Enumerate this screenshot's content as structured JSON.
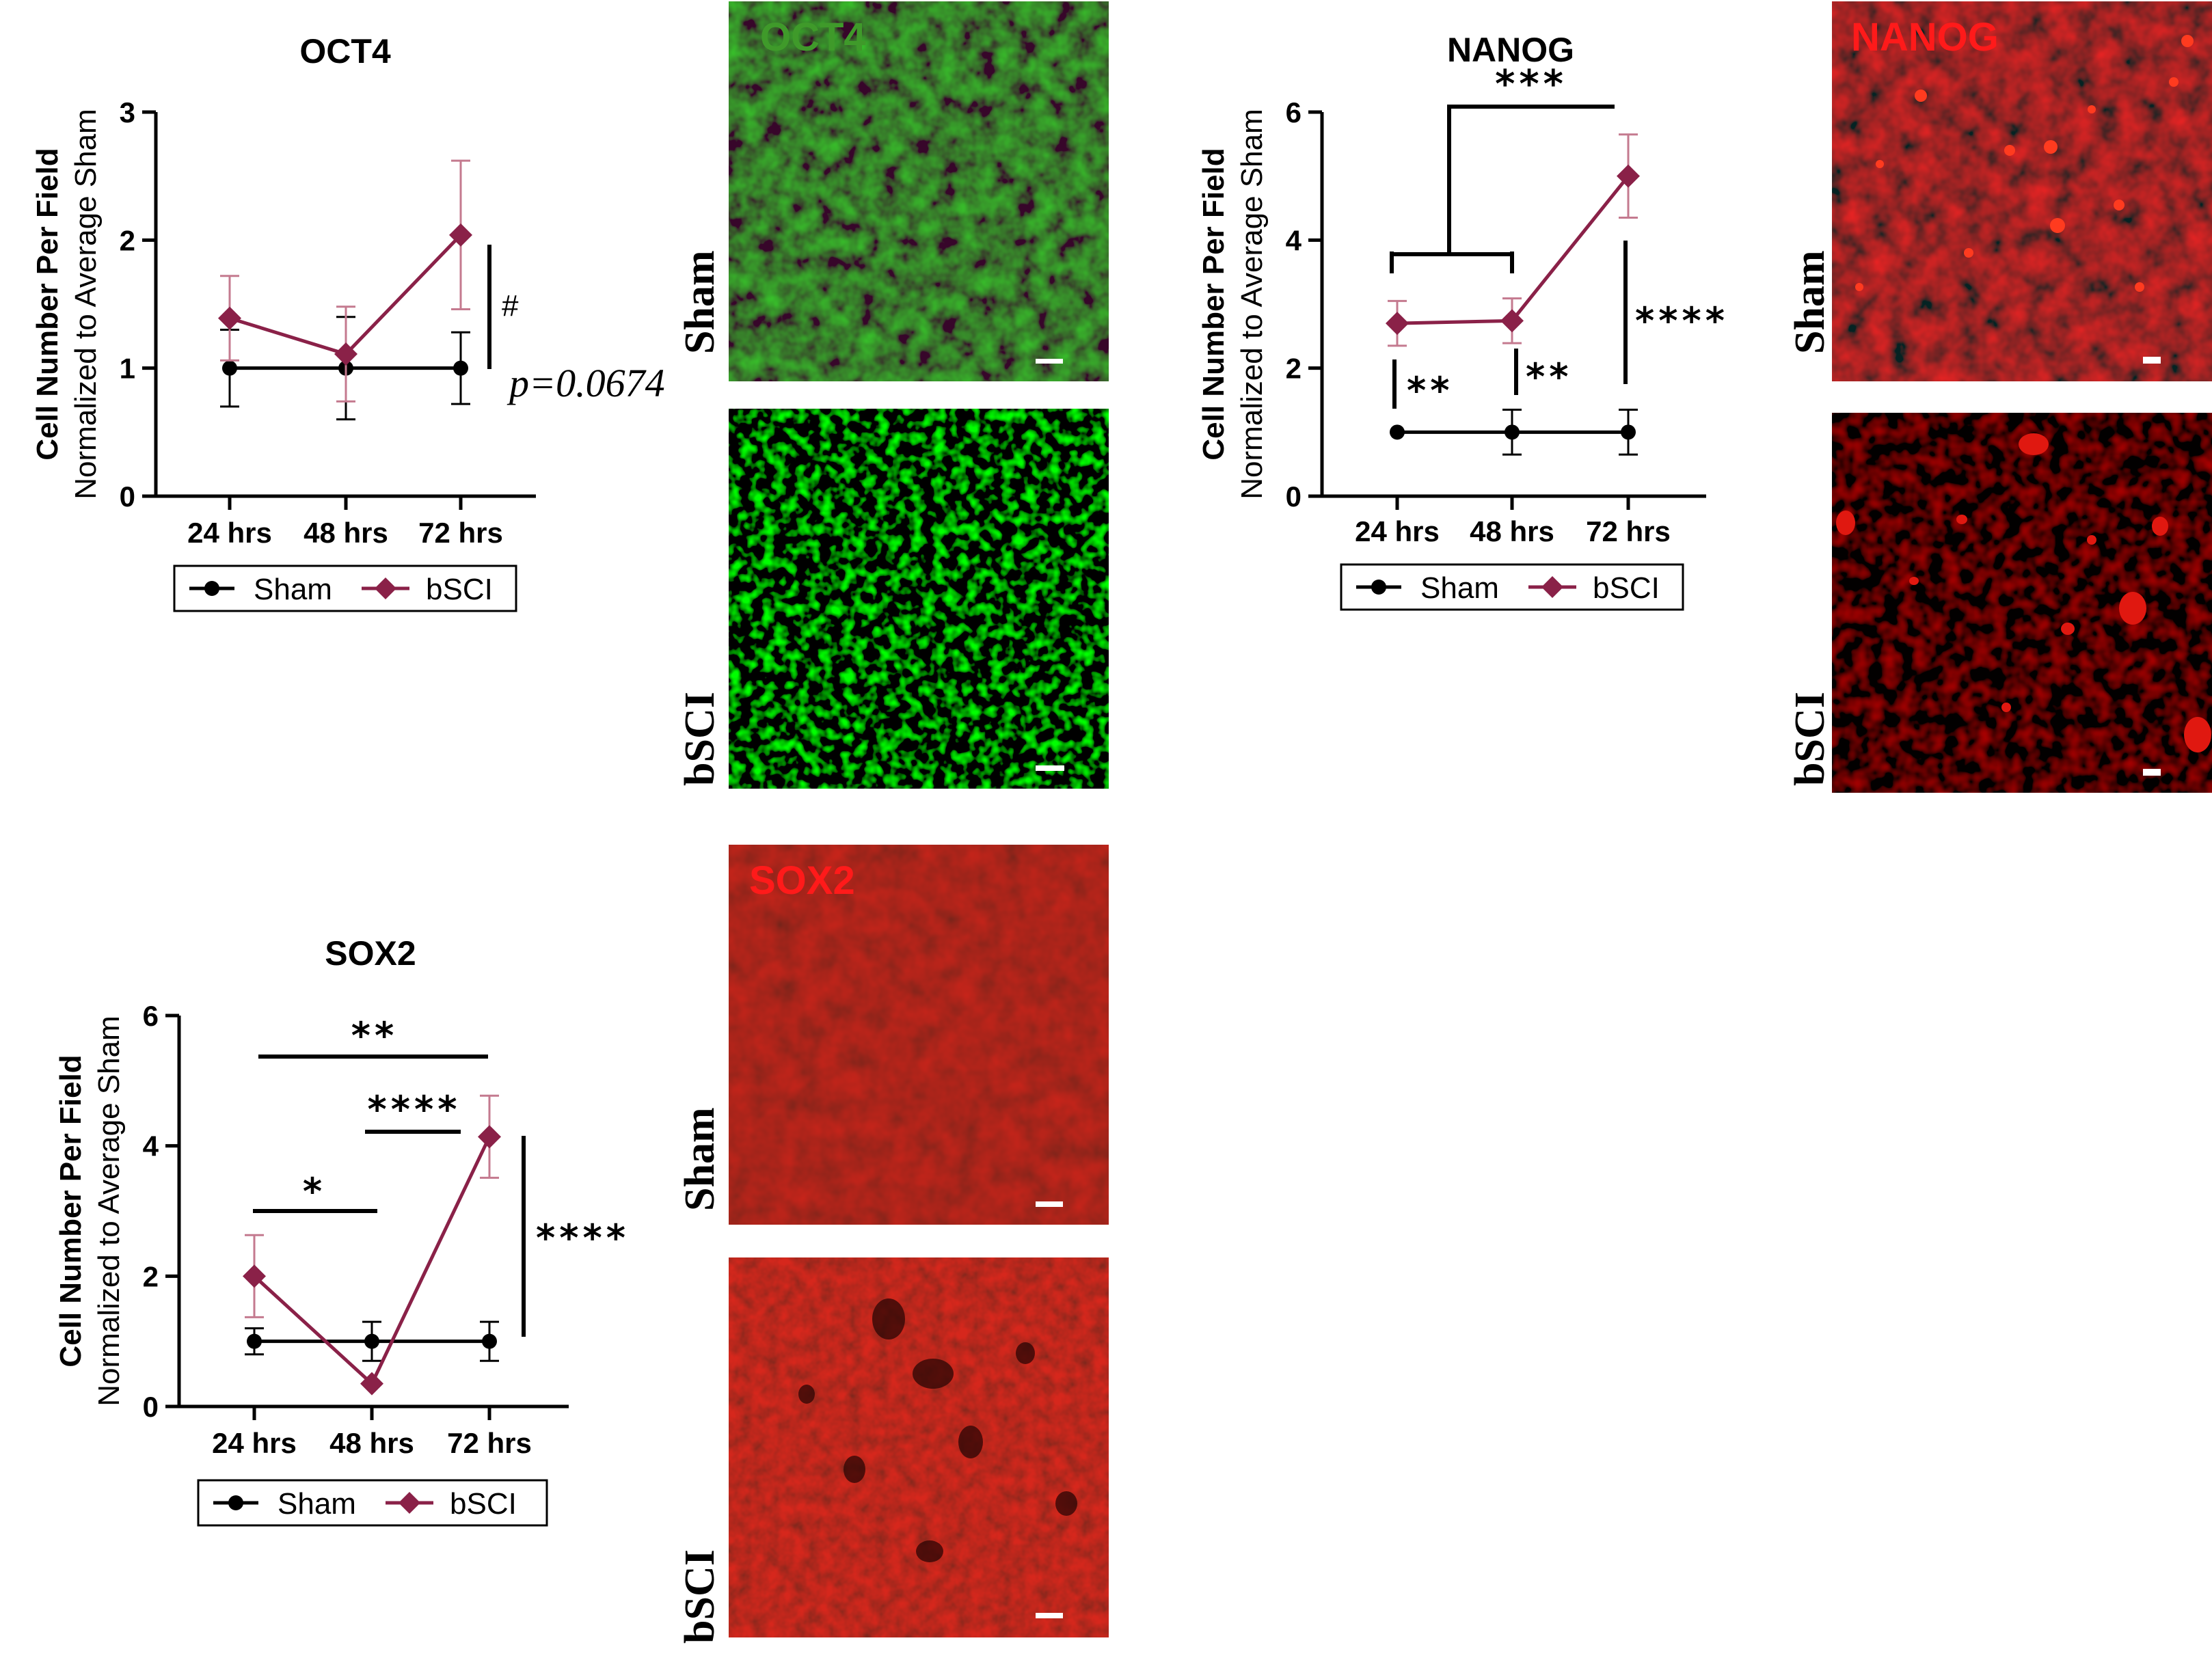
{
  "colors": {
    "sham": "#000000",
    "bsci": "#8a2148",
    "bsci_err": "#c47a8f",
    "green_label": "#3f9a2a",
    "red_label": "#ff1a1a"
  },
  "chart_data": [
    {
      "id": "oct4",
      "type": "line",
      "title": "OCT4",
      "ylabel_line1": "Cell Number Per Field",
      "ylabel_line2": "Normalized to Average Sham",
      "categories": [
        "24 hrs",
        "48 hrs",
        "72 hrs"
      ],
      "ylim": [
        0,
        3
      ],
      "yticks": [
        0,
        1,
        2,
        3
      ],
      "series": [
        {
          "name": "Sham",
          "values": [
            1.0,
            1.0,
            1.0
          ],
          "err": [
            0.3,
            0.4,
            0.28
          ],
          "marker": "circle"
        },
        {
          "name": "bSCI",
          "values": [
            1.39,
            1.11,
            2.04
          ],
          "err": [
            0.33,
            0.37,
            0.58
          ],
          "marker": "diamond"
        }
      ],
      "annotations": [
        {
          "text": "#",
          "style": "sans"
        },
        {
          "text": "p=0.0674",
          "style": "serif-italic"
        }
      ]
    },
    {
      "id": "nanog",
      "type": "line",
      "title": "NANOG",
      "ylabel_line1": "Cell Number Per Field",
      "ylabel_line2": "Normalized to Average Sham",
      "categories": [
        "24 hrs",
        "48 hrs",
        "72 hrs"
      ],
      "ylim": [
        0,
        6
      ],
      "yticks": [
        0,
        2,
        4,
        6
      ],
      "series": [
        {
          "name": "Sham",
          "values": [
            1.0,
            1.0,
            1.0
          ],
          "err": [
            0.0,
            0.35,
            0.35
          ],
          "marker": "circle"
        },
        {
          "name": "bSCI",
          "values": [
            2.7,
            2.74,
            5.0
          ],
          "err": [
            0.35,
            0.35,
            0.65
          ],
          "marker": "diamond"
        }
      ],
      "annotations": [
        {
          "text": "***"
        },
        {
          "text": "**"
        },
        {
          "text": "**"
        },
        {
          "text": "****"
        }
      ]
    },
    {
      "id": "sox2",
      "type": "line",
      "title": "SOX2",
      "ylabel_line1": "Cell Number Per Field",
      "ylabel_line2": "Normalized to Average Sham",
      "categories": [
        "24 hrs",
        "48 hrs",
        "72 hrs"
      ],
      "ylim": [
        0,
        6
      ],
      "yticks": [
        0,
        2,
        4,
        6
      ],
      "series": [
        {
          "name": "Sham",
          "values": [
            1.0,
            1.0,
            1.0
          ],
          "err": [
            0.2,
            0.3,
            0.3
          ],
          "marker": "circle"
        },
        {
          "name": "bSCI",
          "values": [
            2.0,
            0.35,
            4.14
          ],
          "err": [
            0.63,
            0.0,
            0.63
          ],
          "marker": "diamond"
        }
      ],
      "annotations": [
        {
          "text": "**"
        },
        {
          "text": "****"
        },
        {
          "text": "*"
        },
        {
          "text": "****"
        }
      ]
    }
  ],
  "legend": {
    "sham": "Sham",
    "bsci": "bSCI"
  },
  "images": {
    "oct4": {
      "label": "OCT4",
      "row_top": "Sham",
      "row_bottom": "bSCI"
    },
    "nanog": {
      "label": "NANOG",
      "row_top": "Sham",
      "row_bottom": "bSCI"
    },
    "sox2": {
      "label": "SOX2",
      "row_top": "Sham",
      "row_bottom": "bSCI"
    }
  }
}
